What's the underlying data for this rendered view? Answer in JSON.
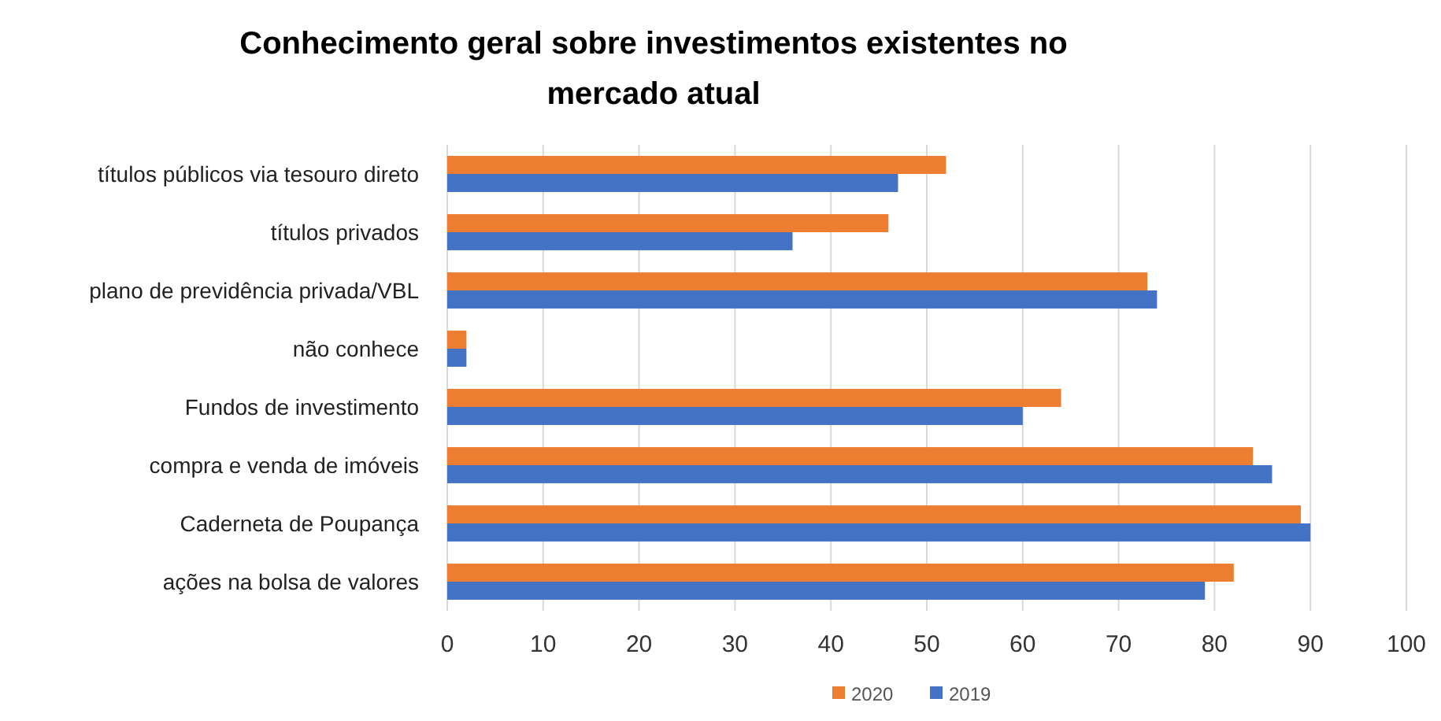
{
  "chart_data": {
    "type": "bar",
    "orientation": "horizontal",
    "title": "Conhecimento geral sobre investimentos existentes no mercado atual",
    "categories": [
      "títulos públicos via tesouro direto",
      "títulos privados",
      "plano de previdência privada/VBL",
      "não conhece",
      "Fundos de investimento",
      "compra e venda de imóveis",
      "Caderneta de Poupança",
      "ações na bolsa de valores"
    ],
    "series": [
      {
        "name": "2020",
        "color": "#ed7d31",
        "values": [
          52,
          46,
          73,
          2,
          64,
          84,
          89,
          82
        ]
      },
      {
        "name": "2019",
        "color": "#4472c4",
        "values": [
          47,
          36,
          74,
          2,
          60,
          86,
          90,
          79
        ]
      }
    ],
    "xlim": [
      0,
      100
    ],
    "xticks": [
      0,
      10,
      20,
      30,
      40,
      50,
      60,
      70,
      80,
      90,
      100
    ],
    "grid": "x",
    "legend": "bottom"
  }
}
